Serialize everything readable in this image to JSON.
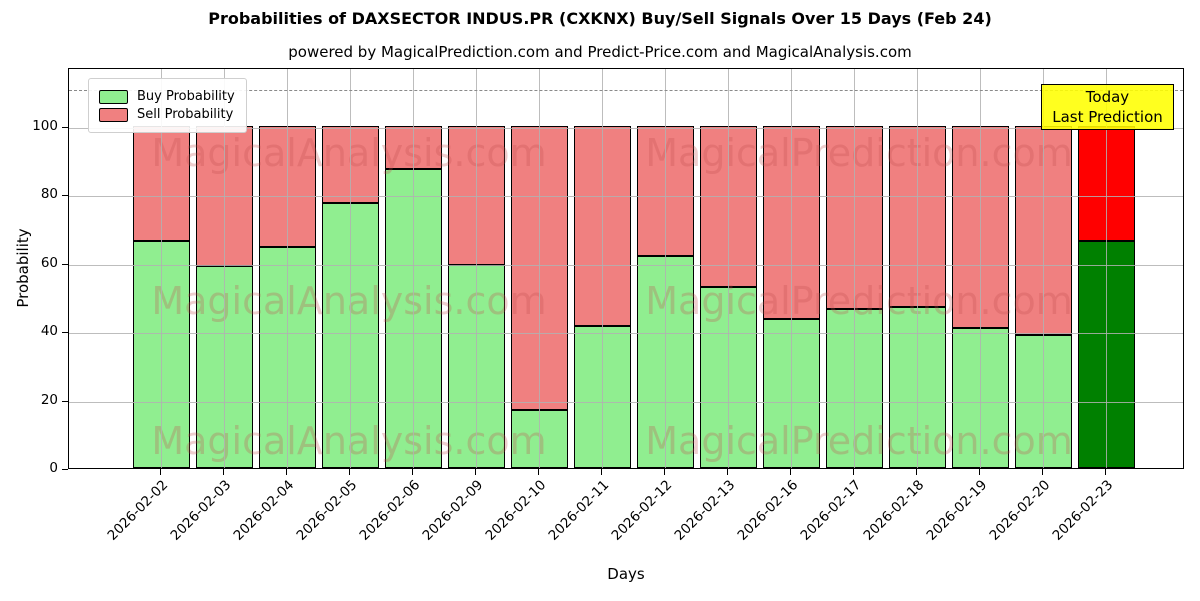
{
  "title": "Probabilities of DAXSECTOR INDUS.PR (CXKNX) Buy/Sell Signals Over 15 Days (Feb 24)",
  "subtitle": "powered by MagicalPrediction.com and Predict-Price.com and MagicalAnalysis.com",
  "legend": {
    "buy_label": "Buy Probability",
    "sell_label": "Sell Probability"
  },
  "annotation": {
    "line1": "Today",
    "line2": "Last Prediction"
  },
  "axes": {
    "xlabel": "Days",
    "ylabel": "Probability",
    "yticks": [
      0,
      20,
      40,
      60,
      80,
      100
    ]
  },
  "watermarks": [
    "MagicalAnalysis.com",
    "MagicalPrediction.com"
  ],
  "colors": {
    "buy": "#90EE90",
    "sell": "#F08080",
    "today_buy": "#008000",
    "today_sell": "#FF0000",
    "annotation_bg": "#FFFF00",
    "grid": "#B2B2B2",
    "reference_line": "#8A8A8A"
  },
  "chart_data": {
    "type": "bar",
    "stacked": true,
    "title": "Probabilities of DAXSECTOR INDUS.PR (CXKNX) Buy/Sell Signals Over 15 Days (Feb 24)",
    "xlabel": "Days",
    "ylabel": "Probability",
    "ylim": [
      0,
      117
    ],
    "grid": true,
    "legend_position": "upper left",
    "reference_line_y": 111,
    "categories": [
      "2026-02-02",
      "2026-02-03",
      "2026-02-04",
      "2026-02-05",
      "2026-02-06",
      "2026-02-09",
      "2026-02-10",
      "2026-02-11",
      "2026-02-12",
      "2026-02-13",
      "2026-02-16",
      "2026-02-17",
      "2026-02-18",
      "2026-02-19",
      "2026-02-20",
      "2026-02-23"
    ],
    "series": [
      {
        "name": "Buy Probability",
        "values": [
          66.5,
          59,
          64.5,
          77.5,
          87.5,
          59.5,
          17,
          41.5,
          62,
          53,
          43.5,
          46.5,
          47,
          41,
          39,
          66.5
        ]
      },
      {
        "name": "Sell Probability",
        "values": [
          33.5,
          41,
          35.5,
          22.5,
          12.5,
          40.5,
          83,
          58.5,
          38,
          47,
          56.5,
          53.5,
          53,
          59,
          61,
          33.5
        ]
      }
    ],
    "today_bar": {
      "category": "2026-02-23",
      "buy": 66.5,
      "sell": 33.5,
      "note": "Today / Last Prediction"
    }
  }
}
